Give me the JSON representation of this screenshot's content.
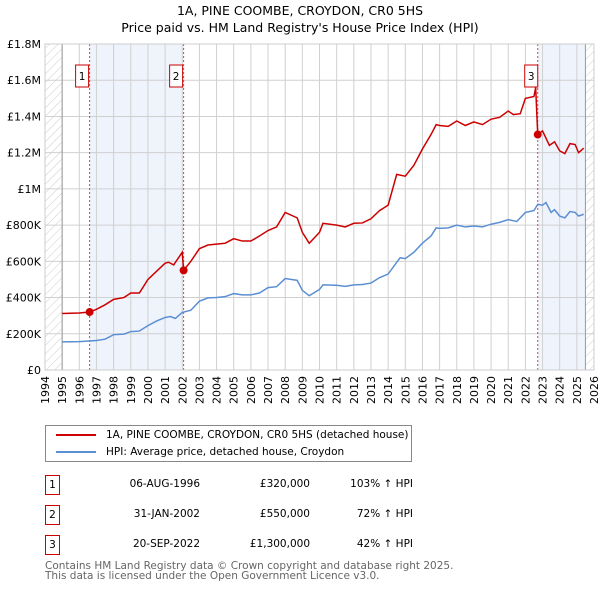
{
  "chart_data": {
    "type": "line",
    "title": "1A, PINE COOMBE, CROYDON, CR0 5HS",
    "subtitle": "Price paid vs. HM Land Registry's House Price Index (HPI)",
    "xlim": [
      1994,
      2026
    ],
    "ylim": [
      0,
      1800000
    ],
    "x_ticks": [
      "1994",
      "1995",
      "1996",
      "1997",
      "1998",
      "1999",
      "2000",
      "2001",
      "2002",
      "2003",
      "2004",
      "2005",
      "2006",
      "2007",
      "2008",
      "2009",
      "2010",
      "2011",
      "2012",
      "2013",
      "2014",
      "2015",
      "2016",
      "2017",
      "2018",
      "2019",
      "2020",
      "2021",
      "2022",
      "2023",
      "2024",
      "2025",
      "2026"
    ],
    "y_ticks": [
      {
        "v": 0,
        "label": "£0"
      },
      {
        "v": 200000,
        "label": "£200K"
      },
      {
        "v": 400000,
        "label": "£400K"
      },
      {
        "v": 600000,
        "label": "£600K"
      },
      {
        "v": 800000,
        "label": "£800K"
      },
      {
        "v": 1000000,
        "label": "£1M"
      },
      {
        "v": 1200000,
        "label": "£1.2M"
      },
      {
        "v": 1400000,
        "label": "£1.4M"
      },
      {
        "v": 1600000,
        "label": "£1.6M"
      },
      {
        "v": 1800000,
        "label": "£1.8M"
      }
    ],
    "grid": true,
    "series": [
      {
        "name": "1A, PINE COOMBE, CROYDON, CR0 5HS (detached house)",
        "color": "#cc0000",
        "points": [
          [
            1995,
            312000
          ],
          [
            1996,
            315000
          ],
          [
            1996.6,
            320000
          ],
          [
            1997,
            335000
          ],
          [
            1997.5,
            360000
          ],
          [
            1998,
            390000
          ],
          [
            1998.6,
            400000
          ],
          [
            1999,
            425000
          ],
          [
            1999.5,
            425000
          ],
          [
            2000,
            500000
          ],
          [
            2000.5,
            545000
          ],
          [
            2001,
            590000
          ],
          [
            2001.2,
            595000
          ],
          [
            2001.5,
            580000
          ],
          [
            2002,
            650000
          ],
          [
            2002.08,
            550000
          ],
          [
            2002.5,
            600000
          ],
          [
            2003,
            670000
          ],
          [
            2003.5,
            690000
          ],
          [
            2004,
            695000
          ],
          [
            2004.5,
            700000
          ],
          [
            2005,
            725000
          ],
          [
            2005.5,
            712000
          ],
          [
            2006,
            712000
          ],
          [
            2006.5,
            740000
          ],
          [
            2007,
            770000
          ],
          [
            2007.5,
            790000
          ],
          [
            2008,
            870000
          ],
          [
            2008.7,
            840000
          ],
          [
            2009,
            760000
          ],
          [
            2009.4,
            700000
          ],
          [
            2010,
            760000
          ],
          [
            2010.2,
            810000
          ],
          [
            2011,
            800000
          ],
          [
            2011.5,
            790000
          ],
          [
            2012,
            810000
          ],
          [
            2012.5,
            812000
          ],
          [
            2013,
            835000
          ],
          [
            2013.5,
            880000
          ],
          [
            2014,
            910000
          ],
          [
            2014.5,
            1080000
          ],
          [
            2015,
            1070000
          ],
          [
            2015.5,
            1130000
          ],
          [
            2016,
            1220000
          ],
          [
            2016.5,
            1300000
          ],
          [
            2016.8,
            1355000
          ],
          [
            2017,
            1350000
          ],
          [
            2017.5,
            1345000
          ],
          [
            2018,
            1375000
          ],
          [
            2018.5,
            1350000
          ],
          [
            2019,
            1370000
          ],
          [
            2019.5,
            1355000
          ],
          [
            2020,
            1385000
          ],
          [
            2020.5,
            1395000
          ],
          [
            2021,
            1430000
          ],
          [
            2021.3,
            1410000
          ],
          [
            2021.7,
            1415000
          ],
          [
            2022,
            1500000
          ],
          [
            2022.5,
            1510000
          ],
          [
            2022.6,
            1560000
          ],
          [
            2022.72,
            1300000
          ],
          [
            2023,
            1320000
          ],
          [
            2023.4,
            1240000
          ],
          [
            2023.7,
            1260000
          ],
          [
            2024,
            1210000
          ],
          [
            2024.3,
            1195000
          ],
          [
            2024.6,
            1250000
          ],
          [
            2024.9,
            1245000
          ],
          [
            2025.1,
            1200000
          ],
          [
            2025.4,
            1225000
          ]
        ]
      },
      {
        "name": "HPI: Average price, detached house, Croydon",
        "color": "#5b8fd4",
        "points": [
          [
            1995,
            155000
          ],
          [
            1996,
            157000
          ],
          [
            1997,
            163000
          ],
          [
            1997.5,
            170000
          ],
          [
            1998,
            195000
          ],
          [
            1998.6,
            198000
          ],
          [
            1999,
            212000
          ],
          [
            1999.5,
            215000
          ],
          [
            2000,
            245000
          ],
          [
            2000.5,
            270000
          ],
          [
            2001,
            290000
          ],
          [
            2001.3,
            295000
          ],
          [
            2001.6,
            285000
          ],
          [
            2002,
            318000
          ],
          [
            2002.5,
            330000
          ],
          [
            2003,
            380000
          ],
          [
            2003.5,
            398000
          ],
          [
            2004,
            400000
          ],
          [
            2004.5,
            405000
          ],
          [
            2005,
            422000
          ],
          [
            2005.5,
            415000
          ],
          [
            2006,
            415000
          ],
          [
            2006.5,
            425000
          ],
          [
            2007,
            455000
          ],
          [
            2007.5,
            460000
          ],
          [
            2008,
            505000
          ],
          [
            2008.7,
            495000
          ],
          [
            2009,
            440000
          ],
          [
            2009.4,
            410000
          ],
          [
            2010,
            445000
          ],
          [
            2010.2,
            470000
          ],
          [
            2011,
            468000
          ],
          [
            2011.5,
            462000
          ],
          [
            2012,
            470000
          ],
          [
            2012.5,
            472000
          ],
          [
            2013,
            480000
          ],
          [
            2013.5,
            510000
          ],
          [
            2014,
            530000
          ],
          [
            2014.7,
            620000
          ],
          [
            2015,
            615000
          ],
          [
            2015.5,
            650000
          ],
          [
            2016,
            700000
          ],
          [
            2016.5,
            740000
          ],
          [
            2016.8,
            785000
          ],
          [
            2017,
            782000
          ],
          [
            2017.5,
            785000
          ],
          [
            2018,
            800000
          ],
          [
            2018.5,
            790000
          ],
          [
            2019,
            795000
          ],
          [
            2019.5,
            790000
          ],
          [
            2020,
            805000
          ],
          [
            2020.5,
            815000
          ],
          [
            2021,
            830000
          ],
          [
            2021.5,
            820000
          ],
          [
            2022,
            870000
          ],
          [
            2022.5,
            880000
          ],
          [
            2022.72,
            915000
          ],
          [
            2023,
            910000
          ],
          [
            2023.2,
            925000
          ],
          [
            2023.5,
            870000
          ],
          [
            2023.7,
            885000
          ],
          [
            2024,
            850000
          ],
          [
            2024.3,
            840000
          ],
          [
            2024.6,
            875000
          ],
          [
            2024.9,
            870000
          ],
          [
            2025.1,
            850000
          ],
          [
            2025.4,
            860000
          ]
        ]
      }
    ],
    "sales": [
      {
        "id": "1",
        "x": 1996.6,
        "y": 320000,
        "date": "06-AUG-1996",
        "price": "£320,000",
        "hpi": "103% ↑ HPI"
      },
      {
        "id": "2",
        "x": 2002.08,
        "y": 550000,
        "date": "31-JAN-2002",
        "price": "£550,000",
        "hpi": "72% ↑ HPI"
      },
      {
        "id": "3",
        "x": 2022.72,
        "y": 1300000,
        "date": "20-SEP-2022",
        "price": "£1,300,000",
        "hpi": "42% ↑ HPI"
      }
    ],
    "shaded_ranges": [
      [
        1996.6,
        2002.08
      ],
      [
        2022.72,
        2025.5
      ]
    ],
    "hatched_ranges": [
      [
        1994,
        1995
      ],
      [
        2025.5,
        2026
      ]
    ],
    "legend_position": "below"
  },
  "footer": {
    "line1": "Contains HM Land Registry data © Crown copyright and database right 2025.",
    "line2": "This data is licensed under the Open Government Licence v3.0."
  }
}
